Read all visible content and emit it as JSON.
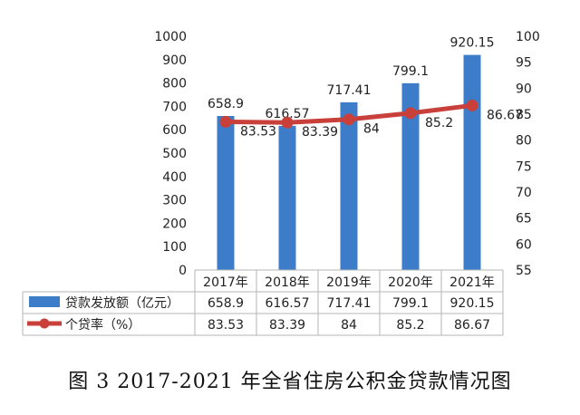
{
  "caption": "图 3 2017-2021 年全省住房公积金贷款情况图",
  "colors": {
    "bar": "#3d7cc9",
    "line": "#c9403a",
    "grid": "#b5b5b5",
    "text": "#222222"
  },
  "chart_data": {
    "type": "bar",
    "categories": [
      "2017年",
      "2018年",
      "2019年",
      "2020年",
      "2021年"
    ],
    "series": [
      {
        "name": "贷款发放额（亿元）",
        "type": "bar",
        "axis": "left",
        "values": [
          658.9,
          616.57,
          717.41,
          799.1,
          920.15
        ],
        "labels": [
          "658.9",
          "616.57",
          "717.41",
          "799.1",
          "920.15"
        ]
      },
      {
        "name": "个贷率（%）",
        "type": "line",
        "axis": "right",
        "values": [
          83.53,
          83.39,
          84,
          85.2,
          86.67
        ],
        "labels": [
          "83.53",
          "83.39",
          "84",
          "85.2",
          "86.67"
        ]
      }
    ],
    "y_left": {
      "min": 0,
      "max": 1000,
      "ticks": [
        "0",
        "100",
        "200",
        "300",
        "400",
        "500",
        "600",
        "700",
        "800",
        "900",
        "1000"
      ]
    },
    "y_right": {
      "min": 55,
      "max": 100,
      "ticks": [
        "55",
        "60",
        "65",
        "70",
        "75",
        "80",
        "85",
        "90",
        "95",
        "100"
      ]
    },
    "legend": "data-table",
    "grid": false
  }
}
